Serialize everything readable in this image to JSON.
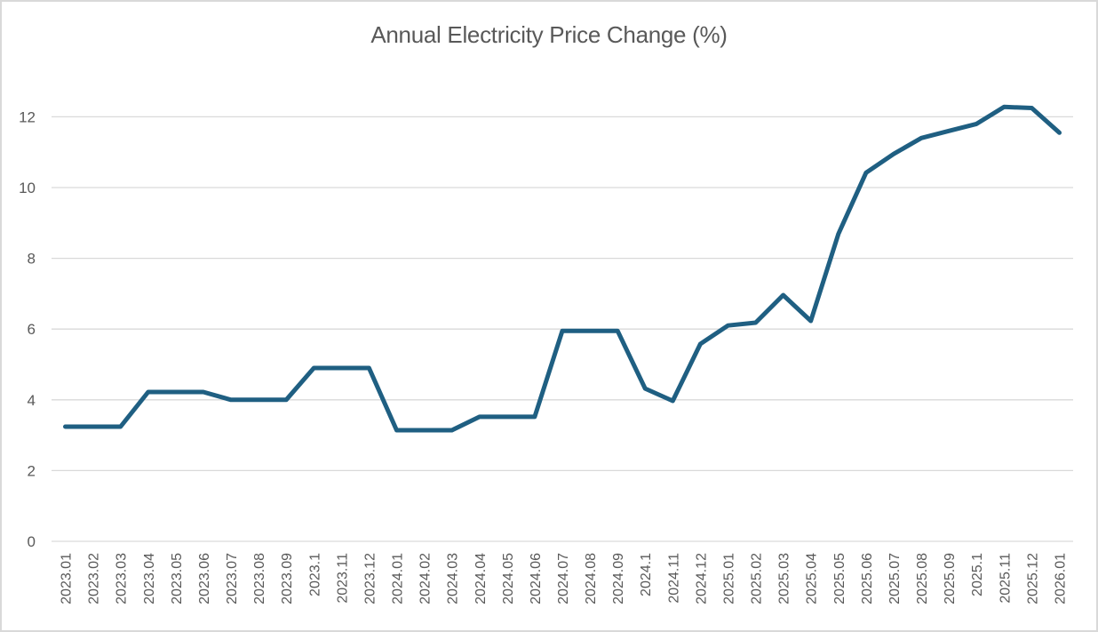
{
  "chart_data": {
    "type": "line",
    "title": "Annual Electricity Price Change (%)",
    "xlabel": "",
    "ylabel": "",
    "ylim": [
      0,
      13
    ],
    "yticks": [
      0,
      2,
      4,
      6,
      8,
      10,
      12
    ],
    "grid": true,
    "legend": "none",
    "categories": [
      "2023.01",
      "2023.02",
      "2023.03",
      "2023.04",
      "2023.05",
      "2023.06",
      "2023.07",
      "2023.08",
      "2023.09",
      "2023.1",
      "2023.11",
      "2023.12",
      "2024.01",
      "2024.02",
      "2024.03",
      "2024.04",
      "2024.05",
      "2024.06",
      "2024.07",
      "2024.08",
      "2024.09",
      "2024.1",
      "2024.11",
      "2024.12",
      "2025.01",
      "2025.02",
      "2025.03",
      "2025.04",
      "2025.05",
      "2025.06",
      "2025.07",
      "2025.08",
      "2025.09",
      "2025.1",
      "2025.11",
      "2025.12",
      "2026.01"
    ],
    "series": [
      {
        "name": "Annual Electricity Price Change (%)",
        "color": "#1f5f82",
        "values": [
          3.24,
          3.24,
          3.24,
          4.22,
          4.22,
          4.22,
          4.0,
          4.0,
          4.0,
          4.9,
          4.9,
          4.9,
          3.14,
          3.14,
          3.14,
          3.52,
          3.52,
          3.52,
          5.95,
          5.95,
          5.95,
          4.32,
          3.97,
          5.58,
          6.1,
          6.18,
          6.96,
          6.23,
          8.69,
          10.42,
          10.95,
          11.4,
          11.6,
          11.8,
          12.28,
          12.25,
          11.55
        ]
      }
    ]
  }
}
